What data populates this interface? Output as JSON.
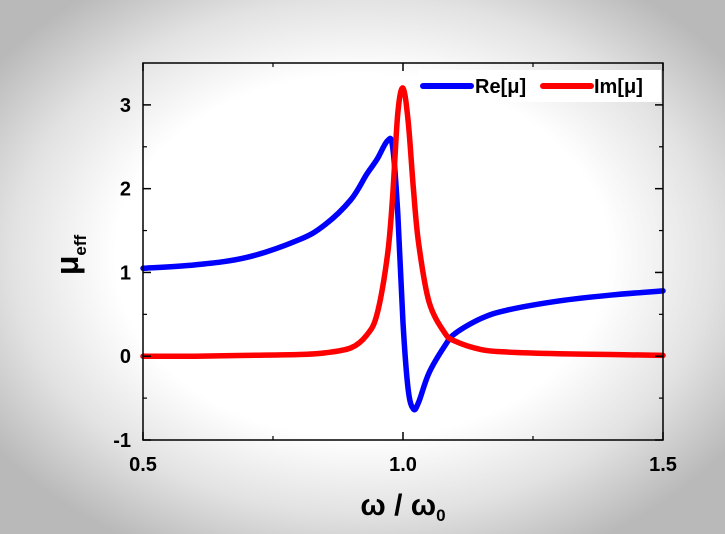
{
  "chart_data": {
    "type": "line",
    "title": "",
    "xlabel_main": "ω / ω",
    "xlabel_sub": "0",
    "ylabel_main": "μ",
    "ylabel_sub": "eff",
    "xlim": [
      0.5,
      1.5
    ],
    "ylim": [
      -1,
      3.5
    ],
    "x_ticks": [
      0.5,
      1.0,
      1.5
    ],
    "x_tick_labels": [
      "0.5",
      "1.0",
      "1.5"
    ],
    "y_ticks": [
      -1,
      0,
      1,
      2,
      3
    ],
    "y_tick_labels": [
      "-1",
      "0",
      "1",
      "2",
      "3"
    ],
    "grid": false,
    "legend_position": "top-right",
    "series": [
      {
        "name": "Re[μ]",
        "color": "#0000ff",
        "x": [
          0.5,
          0.6,
          0.7,
          0.8,
          0.85,
          0.9,
          0.93,
          0.95,
          0.97,
          0.98,
          0.99,
          1.0,
          1.01,
          1.02,
          1.03,
          1.05,
          1.08,
          1.1,
          1.15,
          1.2,
          1.3,
          1.4,
          1.5
        ],
        "y": [
          1.05,
          1.09,
          1.18,
          1.39,
          1.57,
          1.87,
          2.17,
          2.35,
          2.57,
          2.5,
          1.7,
          0.4,
          -0.4,
          -0.63,
          -0.55,
          -0.2,
          0.12,
          0.27,
          0.45,
          0.55,
          0.66,
          0.73,
          0.78
        ]
      },
      {
        "name": "Im[μ]",
        "color": "#ff0000",
        "x": [
          0.5,
          0.6,
          0.7,
          0.8,
          0.85,
          0.9,
          0.93,
          0.95,
          0.97,
          0.98,
          0.99,
          1.0,
          1.01,
          1.02,
          1.03,
          1.05,
          1.08,
          1.1,
          1.15,
          1.2,
          1.3,
          1.4,
          1.5
        ],
        "y": [
          0.0,
          0.0,
          0.01,
          0.02,
          0.04,
          0.1,
          0.25,
          0.5,
          1.2,
          1.9,
          2.9,
          3.2,
          2.8,
          2.0,
          1.35,
          0.65,
          0.28,
          0.18,
          0.08,
          0.05,
          0.03,
          0.02,
          0.01
        ]
      }
    ]
  }
}
